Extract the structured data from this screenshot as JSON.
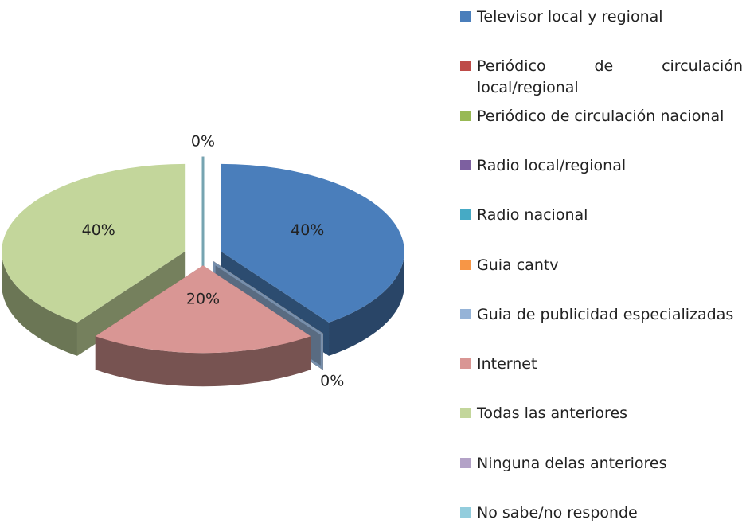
{
  "chart_data": {
    "type": "pie",
    "categories": [
      "Televisor local y regional",
      "Periódico de circulación local/regional",
      "Periódico de circulación nacional",
      "Radio local/regional",
      "Radio nacional",
      "Guia cantv",
      "Guia de publicidad especializadas",
      "Internet",
      "Todas las anteriores",
      "Ninguna delas anteriores",
      "No sabe/no responde"
    ],
    "values": [
      40,
      0,
      0,
      0,
      0,
      0,
      0,
      20,
      40,
      0,
      0
    ],
    "value_labels": [
      "40%",
      null,
      null,
      null,
      null,
      null,
      "0%",
      "20%",
      "40%",
      null,
      "0%"
    ],
    "colors": [
      "#4a7ebb",
      "#be4b48",
      "#98b954",
      "#7d60a0",
      "#46aac5",
      "#f79646",
      "#95b3d7",
      "#d99694",
      "#c3d69b",
      "#b3a2c7",
      "#93cddd"
    ],
    "legend": "right"
  }
}
